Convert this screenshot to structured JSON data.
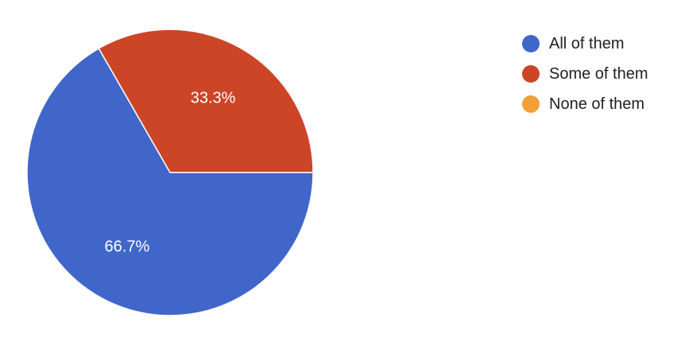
{
  "chart_data": {
    "type": "pie",
    "title": "",
    "legend_position": "top-right",
    "slices": [
      {
        "label": "All of them",
        "value": 66.7,
        "display": "66.7%",
        "color": "#4066c9"
      },
      {
        "label": "Some of them",
        "value": 33.3,
        "display": "33.3%",
        "color": "#cc4526"
      },
      {
        "label": "None of them",
        "value": 0,
        "display": "",
        "color": "#f1a038"
      }
    ]
  }
}
